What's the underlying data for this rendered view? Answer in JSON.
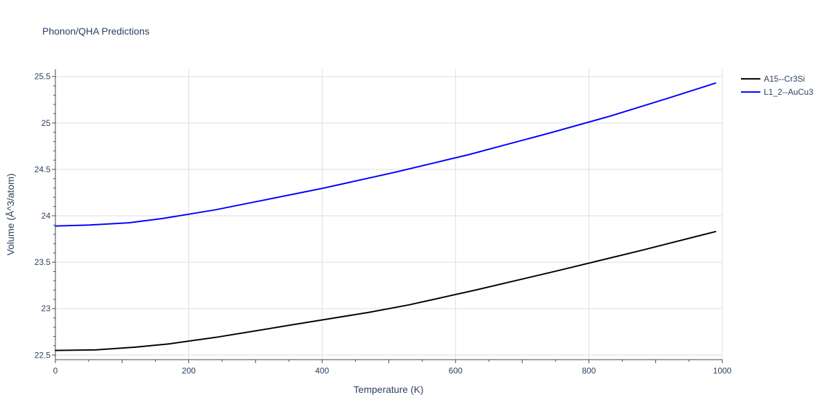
{
  "chart_data": {
    "type": "line",
    "title": "Phonon/QHA Predictions",
    "xlabel": "Temperature (K)",
    "ylabel": "Volume (Å^3/atom)",
    "xlim": [
      0,
      1000
    ],
    "ylim": [
      22.45,
      25.58
    ],
    "x_ticks": [
      0,
      200,
      400,
      600,
      800,
      1000
    ],
    "x_tick_labels": [
      "0",
      "200",
      "400",
      "600",
      "800",
      "1000"
    ],
    "y_ticks": [
      22.5,
      23,
      23.5,
      24,
      24.5,
      25,
      25.5
    ],
    "y_tick_labels": [
      "22.5",
      "23",
      "23.5",
      "24",
      "24.5",
      "25",
      "25.5"
    ],
    "grid": true,
    "legend_position": "top-right",
    "series": [
      {
        "name": "A15--Cr3Si",
        "color": "#000000",
        "x": [
          0,
          60,
          120,
          170,
          240,
          300,
          350,
          410,
          470,
          530,
          630,
          760,
          880,
          990
        ],
        "y": [
          22.55,
          22.555,
          22.585,
          22.62,
          22.69,
          22.76,
          22.82,
          22.89,
          22.96,
          23.04,
          23.2,
          23.42,
          23.63,
          23.83
        ]
      },
      {
        "name": "L1_2--AuCu3",
        "color": "#0000ff",
        "x": [
          0,
          50,
          110,
          160,
          240,
          320,
          400,
          510,
          620,
          740,
          830,
          920,
          990
        ],
        "y": [
          23.89,
          23.9,
          23.925,
          23.97,
          24.065,
          24.18,
          24.295,
          24.47,
          24.66,
          24.89,
          25.07,
          25.27,
          25.43
        ]
      }
    ]
  }
}
